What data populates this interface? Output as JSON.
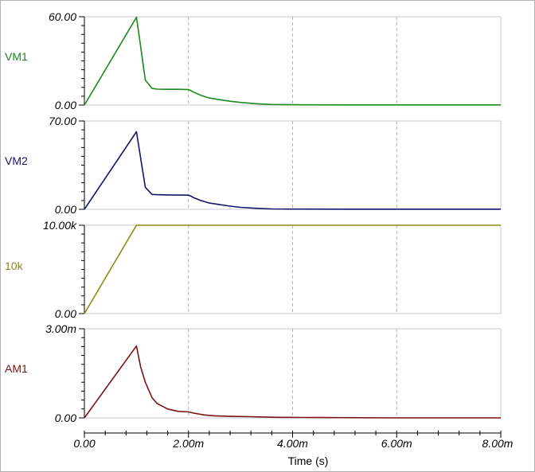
{
  "chart_data": {
    "type": "line",
    "x_axis": {
      "label": "Time (s)",
      "range": [
        0,
        0.008
      ],
      "ticks": [
        0,
        0.002,
        0.004,
        0.006,
        0.008
      ],
      "tick_labels": [
        "0.00",
        "2.00m",
        "4.00m",
        "6.00m",
        "8.00m"
      ],
      "gridlines": "dashed-vertical"
    },
    "panels": [
      {
        "name": "VM1",
        "color": "#1a8a1a",
        "ylim": [
          0,
          60
        ],
        "y_tick_labels": [
          "60.00",
          "0.00"
        ],
        "series": {
          "name": "VM1",
          "x": [
            0,
            0.001,
            0.00106,
            0.00117,
            0.0013,
            0.0014,
            0.0016,
            0.0018,
            0.002,
            0.00205,
            0.0021,
            0.00225,
            0.0024,
            0.0026,
            0.0028,
            0.003,
            0.0033,
            0.0036,
            0.004,
            0.005,
            0.006,
            0.007,
            0.008
          ],
          "y": [
            0,
            59.6,
            45,
            17,
            11.3,
            10.8,
            10.7,
            10.7,
            10.5,
            9.8,
            8.7,
            6.5,
            4.8,
            3.6,
            2.6,
            1.8,
            0.9,
            0.4,
            0.2,
            0.1,
            0.1,
            0.1,
            0.1
          ]
        }
      },
      {
        "name": "VM2",
        "color": "#14146e",
        "ylim": [
          0,
          70
        ],
        "y_tick_labels": [
          "70.00",
          "0.00"
        ],
        "series": {
          "name": "VM2",
          "x": [
            0,
            0.001,
            0.00106,
            0.00117,
            0.0013,
            0.0014,
            0.0016,
            0.0018,
            0.002,
            0.00205,
            0.0021,
            0.00225,
            0.0024,
            0.0026,
            0.0028,
            0.003,
            0.0033,
            0.0036,
            0.004,
            0.005,
            0.006,
            0.007,
            0.008
          ],
          "y": [
            0,
            61.5,
            46,
            17.5,
            11.8,
            11.6,
            11.4,
            11.3,
            11.2,
            10.4,
            9.2,
            6.8,
            5,
            3.7,
            2.5,
            1.6,
            0.8,
            0.3,
            0.2,
            0.1,
            0.1,
            0.1,
            0.1
          ]
        }
      },
      {
        "name": "10k",
        "color": "#8a8a14",
        "ylim": [
          0,
          10000
        ],
        "y_tick_labels": [
          "10.00k",
          "0.00"
        ],
        "series": {
          "name": "10k",
          "x": [
            0,
            0.001,
            0.008
          ],
          "y": [
            0,
            10000,
            10000
          ]
        }
      },
      {
        "name": "AM1",
        "color": "#7a1212",
        "ylim": [
          0,
          0.003
        ],
        "y_tick_labels": [
          "3.00m",
          "0.00"
        ],
        "series": {
          "name": "AM1",
          "x": [
            0,
            0.001,
            0.00102,
            0.00108,
            0.00117,
            0.0013,
            0.0014,
            0.0016,
            0.0018,
            0.002,
            0.0021,
            0.0023,
            0.0025,
            0.0028,
            0.0032,
            0.0037,
            0.0045,
            0.006,
            0.008
          ],
          "y": [
            0,
            0.00242,
            0.00224,
            0.00172,
            0.0012,
            0.00068,
            0.00048,
            0.0003,
            0.00022,
            0.0002,
            0.00016,
            0.0001,
            7e-05,
            5e-05,
            4e-05,
            2e-05,
            1e-05,
            0,
            0
          ]
        }
      }
    ]
  }
}
